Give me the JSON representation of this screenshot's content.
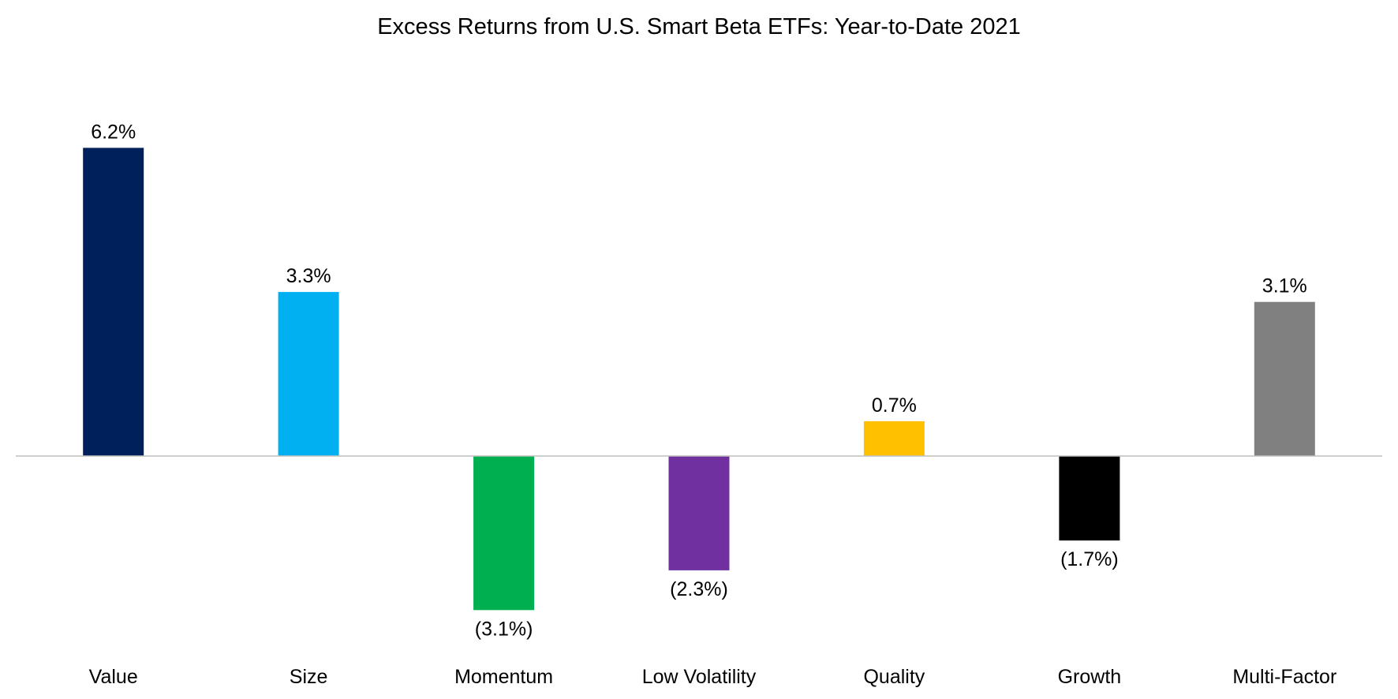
{
  "chart_data": {
    "type": "bar",
    "title": "Excess Returns from U.S. Smart Beta ETFs: Year-to-Date 2021",
    "categories": [
      "Value",
      "Size",
      "Momentum",
      "Low Volatility",
      "Quality",
      "Growth",
      "Multi-Factor"
    ],
    "values": [
      6.2,
      3.3,
      -3.1,
      -2.3,
      0.7,
      -1.7,
      3.1
    ],
    "data_labels": [
      "6.2%",
      "3.3%",
      "(3.1%)",
      "(2.3%)",
      "0.7%",
      "(1.7%)",
      "3.1%"
    ],
    "colors": [
      "#00205B",
      "#00B0F0",
      "#00B050",
      "#7030A0",
      "#FFC000",
      "#000000",
      "#808080"
    ],
    "xlabel": "",
    "ylabel": "",
    "ylim": [
      -4.7,
      6.8
    ],
    "grid": false,
    "legend": "none",
    "baseline_color": "#BFBFBF"
  }
}
